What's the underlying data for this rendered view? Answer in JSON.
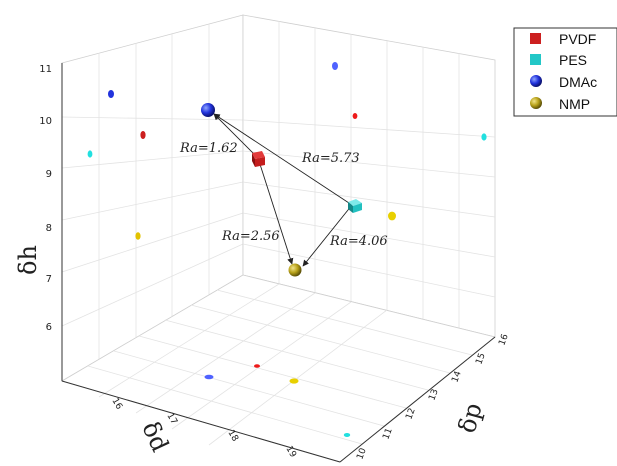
{
  "chart_data": {
    "type": "scatter",
    "axes": {
      "x": {
        "label": "δd",
        "ticks": [
          "16",
          "17",
          "18",
          "19"
        ]
      },
      "y": {
        "label": "δp",
        "ticks": [
          "10",
          "11",
          "12",
          "13",
          "14",
          "15",
          "16"
        ]
      },
      "z": {
        "label": "δh",
        "ticks": [
          "6",
          "7",
          "8",
          "9",
          "10",
          "11"
        ]
      }
    },
    "legend": {
      "position": "top-right",
      "entries": [
        {
          "name": "PVDF",
          "color": "#cc1f1f",
          "marker": "square"
        },
        {
          "name": "PES",
          "color": "#22c7c7",
          "marker": "square"
        },
        {
          "name": "DMAc",
          "color": "#2233dd",
          "marker": "sphere"
        },
        {
          "name": "NMP",
          "color": "#b8a21a",
          "marker": "sphere"
        }
      ]
    },
    "points": [
      {
        "name": "PVDF",
        "color": "#cc1f1f",
        "marker": "square"
      },
      {
        "name": "PES",
        "color": "#22c7c7",
        "marker": "square"
      },
      {
        "name": "DMAc",
        "color": "#2233dd",
        "marker": "sphere"
      },
      {
        "name": "NMP",
        "color": "#b8a21a",
        "marker": "sphere"
      }
    ],
    "annotations": [
      {
        "text": "Ra=1.62",
        "from": "PVDF",
        "to": "DMAc"
      },
      {
        "text": "Ra=5.73",
        "from": "PES",
        "to": "DMAc"
      },
      {
        "text": "Ra=2.56",
        "from": "PVDF",
        "to": "NMP"
      },
      {
        "text": "Ra=4.06",
        "from": "PES",
        "to": "NMP"
      }
    ],
    "grid": true
  }
}
